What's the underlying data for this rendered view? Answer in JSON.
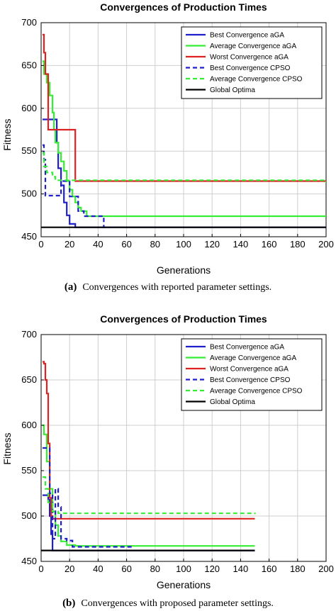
{
  "figures": [
    {
      "caption_label": "(a)",
      "caption_text": "Convergences with reported parameter settings."
    },
    {
      "caption_label": "(b)",
      "caption_text": "Convergences with proposed parameter settings."
    }
  ],
  "chart_data": [
    {
      "type": "line",
      "title": "Convergences of Production Times",
      "xlabel": "Generations",
      "ylabel": "Fitness",
      "xlim": [
        0,
        200
      ],
      "ylim": [
        450,
        700
      ],
      "xticks": [
        0,
        20,
        40,
        60,
        80,
        100,
        120,
        140,
        160,
        180,
        200
      ],
      "yticks": [
        450,
        500,
        550,
        600,
        650,
        700
      ],
      "grid": true,
      "legend_position": "top-right",
      "series": [
        {
          "name": "Best Convergence aGA",
          "color": "#1f1fcc",
          "style": "solid",
          "points": [
            [
              1,
              587
            ],
            [
              10,
              587
            ],
            [
              11,
              560
            ],
            [
              12,
              530
            ],
            [
              14,
              510
            ],
            [
              16,
              490
            ],
            [
              18,
              475
            ],
            [
              20,
              465
            ],
            [
              24,
              461
            ],
            [
              200,
              461
            ]
          ]
        },
        {
          "name": "Average Convergence aGA",
          "color": "#33ee33",
          "style": "solid",
          "points": [
            [
              1,
              655
            ],
            [
              2,
              640
            ],
            [
              4,
              630
            ],
            [
              6,
              615
            ],
            [
              8,
              595
            ],
            [
              9,
              575
            ],
            [
              10,
              560
            ],
            [
              12,
              548
            ],
            [
              14,
              538
            ],
            [
              16,
              527
            ],
            [
              18,
              515
            ],
            [
              20,
              505
            ],
            [
              22,
              497
            ],
            [
              24,
              490
            ],
            [
              26,
              484
            ],
            [
              28,
              480
            ],
            [
              32,
              474
            ],
            [
              200,
              474
            ]
          ]
        },
        {
          "name": "Worst Convergence aGA",
          "color": "#dd2222",
          "style": "solid",
          "points": [
            [
              1,
              686
            ],
            [
              2,
              665
            ],
            [
              3,
              640
            ],
            [
              5,
              575
            ],
            [
              22,
              575
            ],
            [
              24,
              515
            ],
            [
              200,
              515
            ]
          ]
        },
        {
          "name": "Best Convergence CPSO",
          "color": "#1f1fcc",
          "style": "dashed",
          "points": [
            [
              1,
              557
            ],
            [
              2,
              540
            ],
            [
              3,
              498
            ],
            [
              12,
              498
            ],
            [
              14,
              515
            ],
            [
              18,
              515
            ],
            [
              20,
              497
            ],
            [
              24,
              497
            ],
            [
              26,
              480
            ],
            [
              30,
              474
            ],
            [
              42,
              474
            ],
            [
              44,
              461
            ],
            [
              48,
              461
            ]
          ]
        },
        {
          "name": "Average Convergence CPSO",
          "color": "#33ee33",
          "style": "dashed",
          "points": [
            [
              1,
              548
            ],
            [
              2,
              532
            ],
            [
              4,
              525
            ],
            [
              8,
              520
            ],
            [
              10,
              516
            ],
            [
              200,
              513
            ]
          ]
        },
        {
          "name": "Global Optima",
          "color": "#000000",
          "style": "solid",
          "points": [
            [
              0,
              461
            ],
            [
              200,
              461
            ]
          ]
        }
      ]
    },
    {
      "type": "line",
      "title": "Convergences of Production Times",
      "xlabel": "Generations",
      "ylabel": "Fitness",
      "xlim": [
        0,
        200
      ],
      "ylim": [
        450,
        700
      ],
      "xticks": [
        0,
        20,
        40,
        60,
        80,
        100,
        120,
        140,
        160,
        180,
        200
      ],
      "yticks": [
        450,
        500,
        550,
        600,
        650,
        700
      ],
      "grid": true,
      "legend_position": "top-right",
      "series": [
        {
          "name": "Best Convergence aGA",
          "color": "#1f1fcc",
          "style": "solid",
          "points": [
            [
              1,
              523
            ],
            [
              4,
              523
            ],
            [
              5,
              518
            ],
            [
              6,
              500
            ],
            [
              7,
              480
            ],
            [
              8,
              462
            ],
            [
              150,
              462
            ]
          ]
        },
        {
          "name": "Average Convergence aGA",
          "color": "#33ee33",
          "style": "solid",
          "points": [
            [
              1,
              600
            ],
            [
              2,
              590
            ],
            [
              4,
              560
            ],
            [
              6,
              530
            ],
            [
              8,
              505
            ],
            [
              10,
              490
            ],
            [
              12,
              478
            ],
            [
              14,
              472
            ],
            [
              18,
              468
            ],
            [
              24,
              467
            ],
            [
              150,
              467
            ]
          ]
        },
        {
          "name": "Worst Convergence aGA",
          "color": "#dd2222",
          "style": "solid",
          "points": [
            [
              1,
              670
            ],
            [
              2,
              668
            ],
            [
              3,
              650
            ],
            [
              4,
              635
            ],
            [
              5,
              580
            ],
            [
              6,
              520
            ],
            [
              7,
              500
            ],
            [
              8,
              497
            ],
            [
              150,
              497
            ]
          ]
        },
        {
          "name": "Best Convergence CPSO",
          "color": "#1f1fcc",
          "style": "dashed",
          "points": [
            [
              1,
              575
            ],
            [
              3,
              575
            ],
            [
              5,
              575
            ],
            [
              6,
              525
            ],
            [
              8,
              475
            ],
            [
              10,
              530
            ],
            [
              11,
              530
            ],
            [
              12,
              510
            ],
            [
              14,
              475
            ],
            [
              18,
              473
            ],
            [
              22,
              466
            ],
            [
              65,
              466
            ]
          ]
        },
        {
          "name": "Average Convergence CPSO",
          "color": "#33ee33",
          "style": "dashed",
          "points": [
            [
              1,
              543
            ],
            [
              3,
              530
            ],
            [
              5,
              515
            ],
            [
              8,
              505
            ],
            [
              12,
              503
            ],
            [
              150,
              502
            ]
          ]
        },
        {
          "name": "Global Optima",
          "color": "#000000",
          "style": "solid",
          "points": [
            [
              0,
              462
            ],
            [
              150,
              462
            ]
          ]
        }
      ]
    }
  ]
}
